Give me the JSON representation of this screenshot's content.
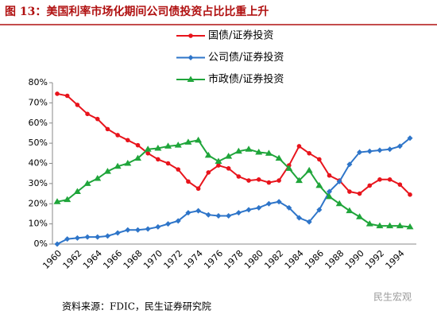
{
  "chart_data": {
    "type": "line",
    "title": "图 13：美国利率市场化期间公司债投资占比比重上升",
    "source": "资料来源：FDIC，民生证券研究院",
    "watermark": "民生宏观",
    "categories": [
      "1960",
      null,
      "1962",
      null,
      "1964",
      null,
      "1966",
      null,
      "1968",
      null,
      "1970",
      null,
      "1972",
      null,
      "1974",
      null,
      "1976",
      null,
      "1978",
      null,
      "1980",
      null,
      "1982",
      null,
      "1984",
      null,
      "1986",
      null,
      "1988",
      null,
      "1990",
      null,
      "1992",
      null,
      "1994",
      null
    ],
    "series": [
      {
        "name": "国债/证券投资",
        "color": "#e8141c",
        "marker": "circle",
        "values": [
          74.5,
          73.5,
          69,
          64.5,
          62,
          57,
          54,
          51.5,
          49,
          45,
          42,
          40,
          37,
          31,
          27.5,
          35.5,
          39,
          37.5,
          33.5,
          31.5,
          32,
          30.5,
          31.5,
          39,
          48.5,
          45,
          42,
          34,
          31.5,
          26,
          25,
          29,
          32,
          32,
          29.5,
          24.5
        ]
      },
      {
        "name": "公司债/证券投资",
        "color": "#2e75c9",
        "marker": "diamond",
        "values": [
          0,
          2.5,
          3,
          3.5,
          3.5,
          4,
          5.5,
          7,
          7,
          7.5,
          8.5,
          10,
          11.5,
          15.5,
          16.5,
          14.5,
          14,
          14,
          15.5,
          17,
          18,
          20,
          21,
          18,
          13,
          11,
          17,
          26,
          31,
          39.5,
          45.5,
          46,
          46.5,
          47,
          48.5,
          52.5
        ]
      },
      {
        "name": "市政债/证券投资",
        "color": "#1fa53a",
        "marker": "triangle",
        "values": [
          21,
          22,
          26,
          30,
          32.5,
          36,
          38.5,
          40,
          42.5,
          47,
          47.5,
          48.5,
          49,
          50.5,
          51.5,
          44,
          41,
          43.5,
          46,
          47,
          45.5,
          45,
          42.5,
          37.5,
          31.5,
          36.5,
          29,
          23.5,
          20,
          16.5,
          13.5,
          10,
          9,
          9,
          9,
          8.5
        ]
      }
    ],
    "ylim": [
      0,
      80
    ],
    "yticks": [
      {
        "value": 0,
        "label": "0%"
      },
      {
        "value": 10,
        "label": "10%"
      },
      {
        "value": 20,
        "label": "20%"
      },
      {
        "value": 30,
        "label": "30%"
      },
      {
        "value": 40,
        "label": "40%"
      },
      {
        "value": 50,
        "label": "50%"
      },
      {
        "value": 60,
        "label": "60%"
      },
      {
        "value": 70,
        "label": "70%"
      },
      {
        "value": 80,
        "label": "80%"
      }
    ],
    "grid": false
  }
}
